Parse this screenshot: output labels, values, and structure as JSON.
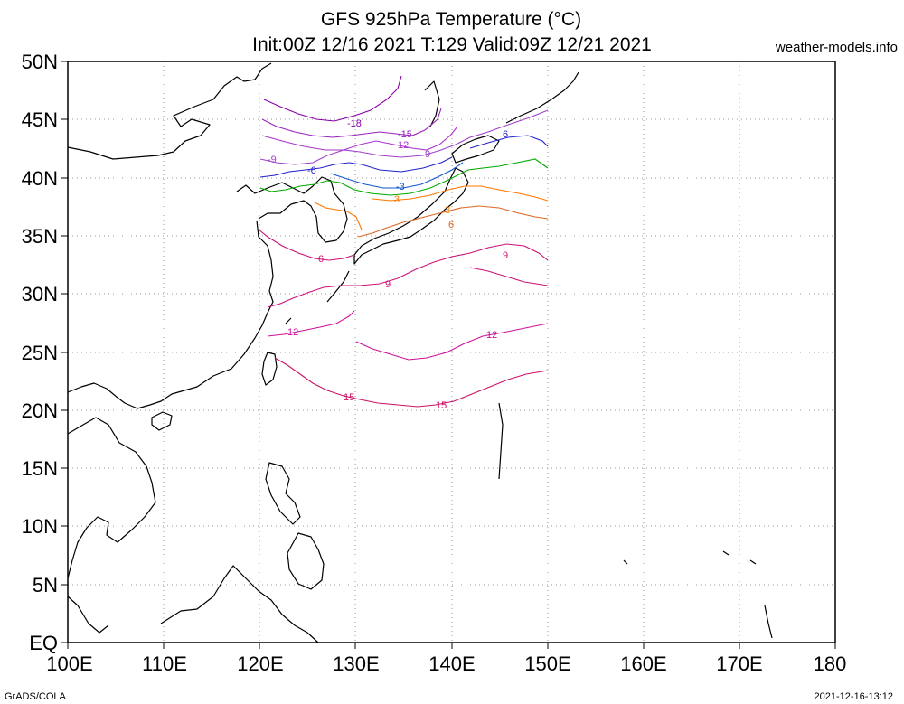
{
  "title_line1": "GFS 925hPa Temperature (°C)",
  "title_line2": "Init:00Z 12/16 2021 T:129 Valid:09Z 12/21 2021",
  "credit": "weather-models.info",
  "footer_left": "GrADS/COLA",
  "footer_right": "2021-12-16-13:12",
  "lat_labels": [
    "50N",
    "45N",
    "40N",
    "35N",
    "30N",
    "25N",
    "20N",
    "15N",
    "10N",
    "5N",
    "EQ"
  ],
  "lon_labels": [
    "100E",
    "110E",
    "120E",
    "130E",
    "140E",
    "150E",
    "160E",
    "170E",
    "180"
  ],
  "colors": {
    "coastline": "#000000",
    "grid": "#999999",
    "c_minus18": "#8800aa",
    "c_minus15": "#9922bb",
    "c_minus12": "#aa33cc",
    "c_minus9": "#a040c8",
    "c_minus6": "#2222cc",
    "c_minus3": "#1155cc",
    "c_0": "#00aa00",
    "c_3": "#ff7700",
    "c_6": "#dd6622",
    "c_9": "#cc1177",
    "c_12": "#cc1199",
    "c_15": "#cc1166"
  },
  "contour_labels": {
    "m18": "-18",
    "m15": "-15",
    "m12": "12",
    "m9a": "-9",
    "m9b": "9",
    "m6a": "-6",
    "m6b": "6",
    "m3": "-3",
    "p3a": "3",
    "p3b": "3",
    "p6a": "6",
    "p6b": "6",
    "p9a": "9",
    "p9b": "9",
    "p12a": "12",
    "p12b": "12",
    "p15a": "15",
    "p15b": "15"
  }
}
